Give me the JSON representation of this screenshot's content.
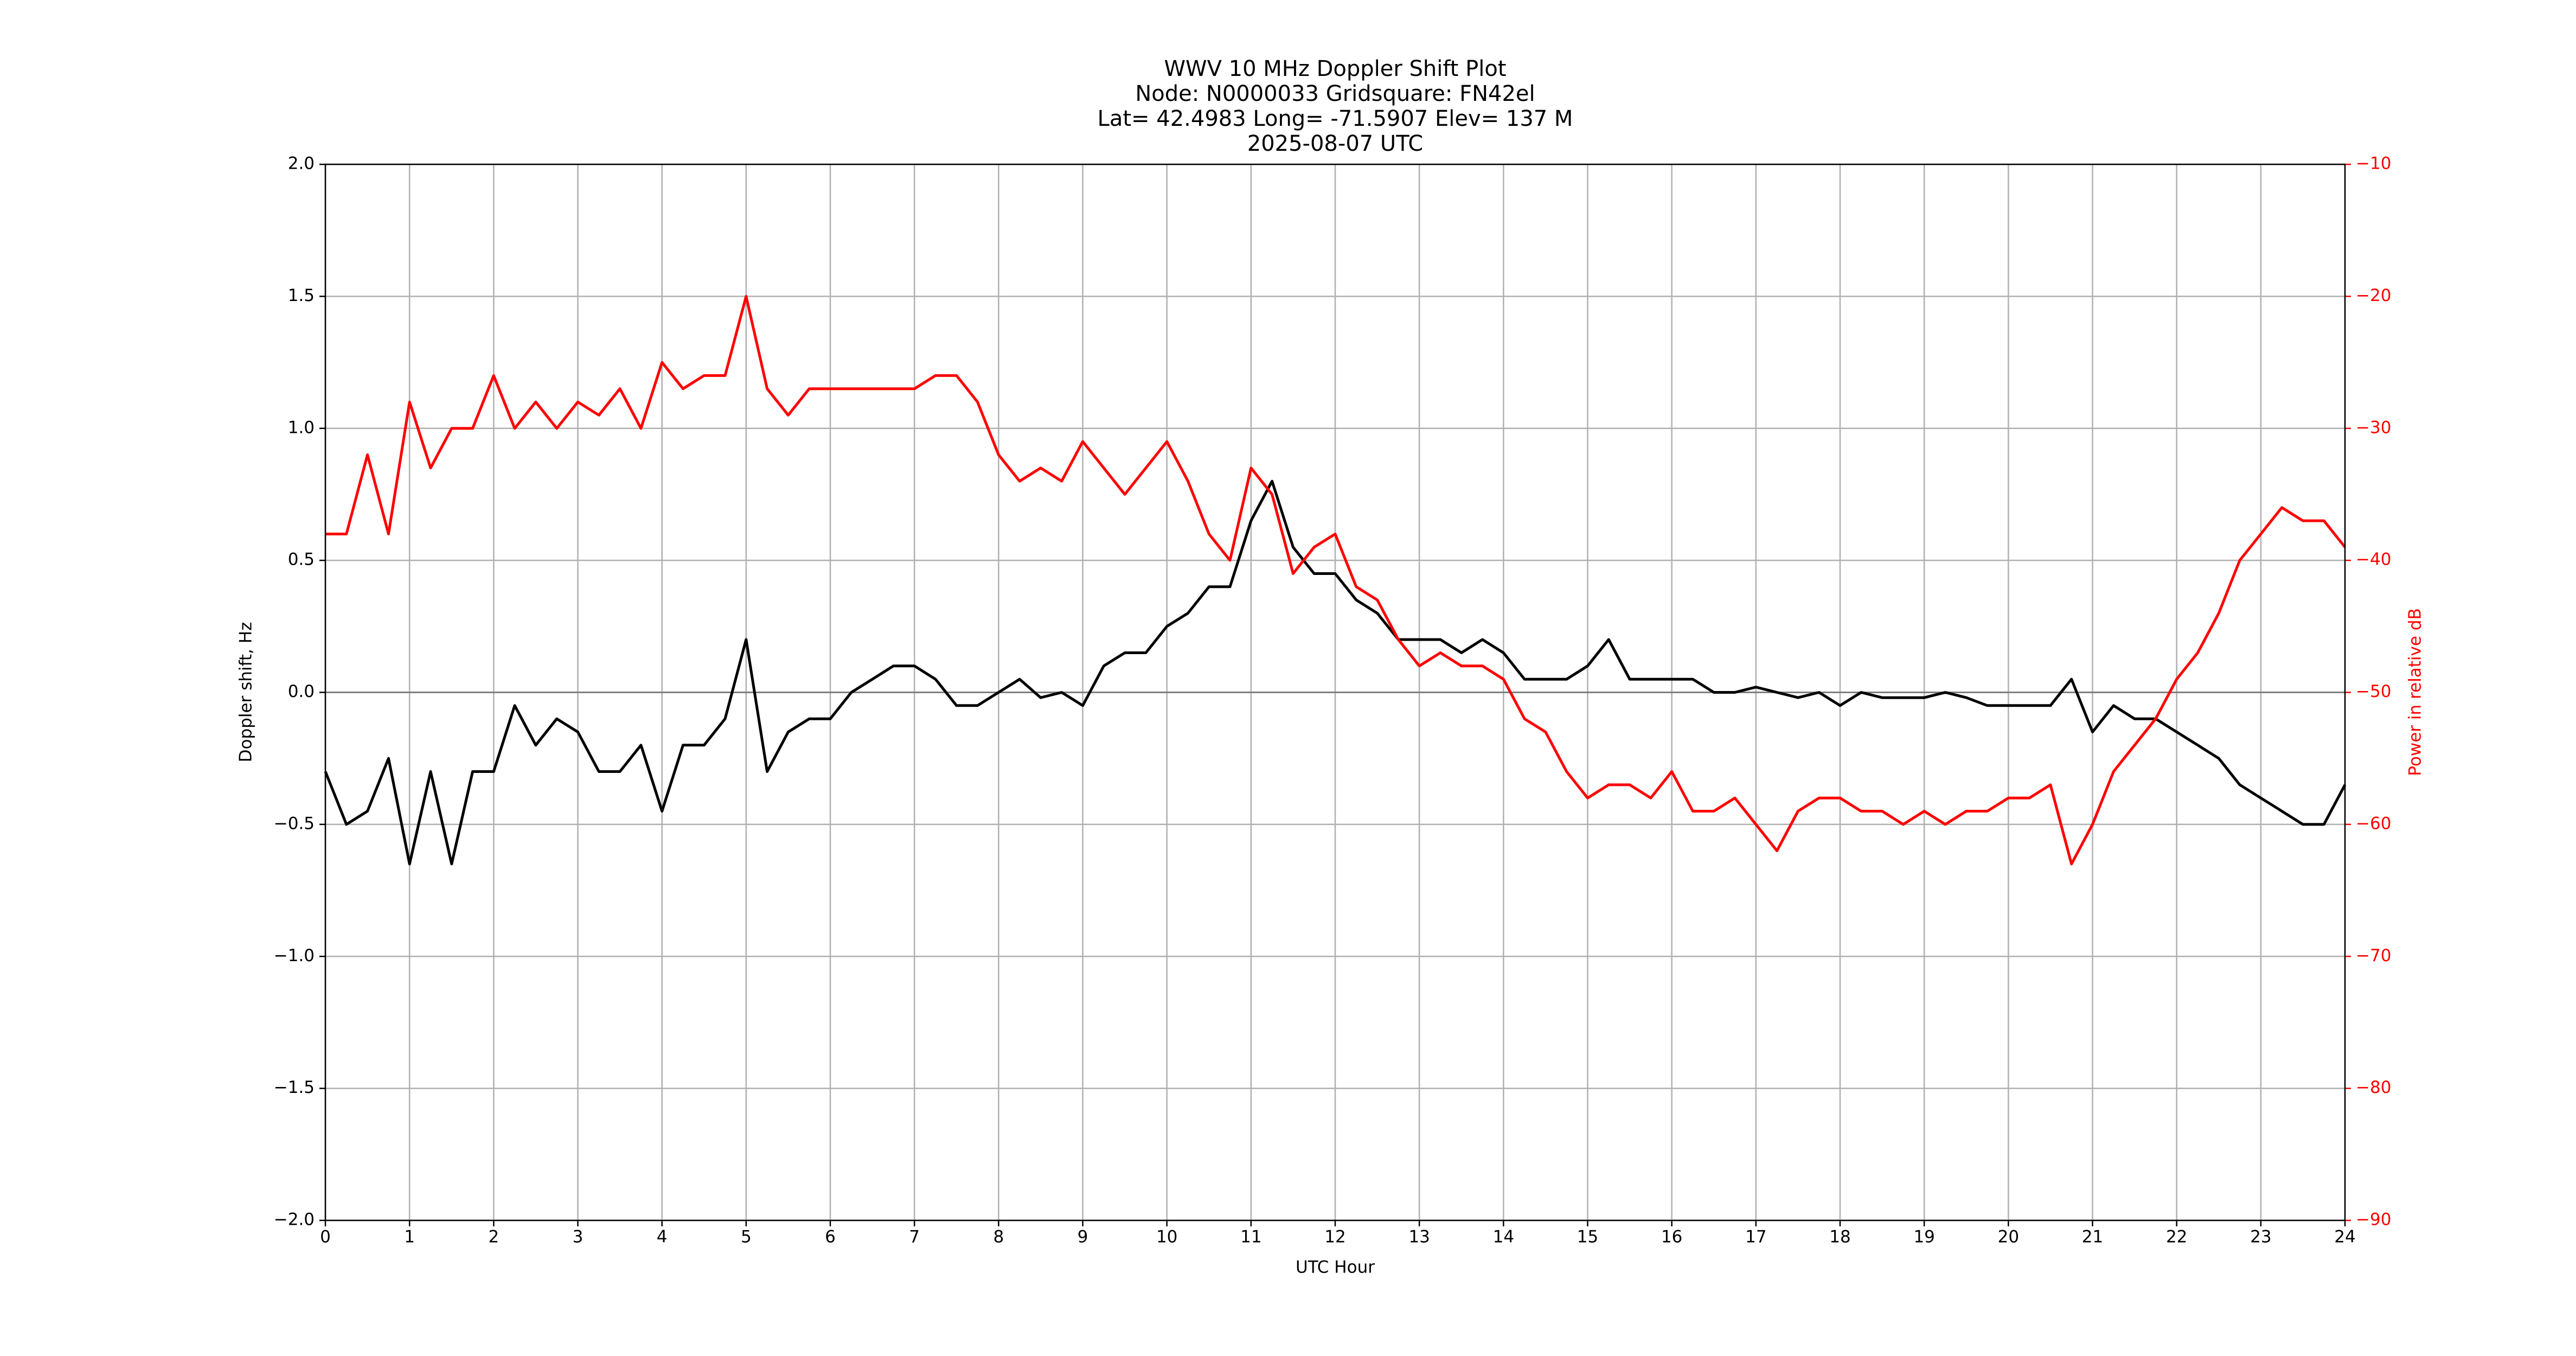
{
  "chart_data": {
    "type": "line",
    "title": [
      "WWV 10 MHz Doppler Shift Plot",
      "Node:  N0000033     Gridsquare:  FN42el",
      "Lat= 42.4983    Long= -71.5907    Elev= 137 M",
      "2025-08-07  UTC"
    ],
    "x_label": "UTC Hour",
    "y_label": "Doppler shift, Hz",
    "y2_label": "Power in relative dB",
    "grid": true,
    "x": [
      0,
      0.25,
      0.5,
      0.75,
      1,
      1.25,
      1.5,
      1.75,
      2,
      2.25,
      2.5,
      2.75,
      3,
      3.25,
      3.5,
      3.75,
      4,
      4.25,
      4.5,
      4.75,
      5,
      5.25,
      5.5,
      5.75,
      6,
      6.25,
      6.5,
      6.75,
      7,
      7.25,
      7.5,
      7.75,
      8,
      8.25,
      8.5,
      8.75,
      9,
      9.25,
      9.5,
      9.75,
      10,
      10.25,
      10.5,
      10.75,
      11,
      11.25,
      11.5,
      11.75,
      12,
      12.25,
      12.5,
      12.75,
      13,
      13.25,
      13.5,
      13.75,
      14,
      14.25,
      14.5,
      14.75,
      15,
      15.25,
      15.5,
      15.75,
      16,
      16.25,
      16.5,
      16.75,
      17,
      17.25,
      17.5,
      17.75,
      18,
      18.25,
      18.5,
      18.75,
      19,
      19.25,
      19.5,
      19.75,
      20,
      20.25,
      20.5,
      20.75,
      21,
      21.25,
      21.5,
      21.75,
      22,
      22.25,
      22.5,
      22.75,
      23,
      23.25,
      23.5,
      23.75,
      24
    ],
    "series": [
      {
        "name": "Doppler shift",
        "color": "#000000",
        "values": [
          -0.3,
          -0.5,
          -0.45,
          -0.25,
          -0.65,
          -0.3,
          -0.65,
          -0.3,
          -0.3,
          -0.05,
          -0.2,
          -0.1,
          -0.15,
          -0.3,
          -0.3,
          -0.2,
          -0.45,
          -0.2,
          -0.2,
          -0.1,
          0.2,
          -0.3,
          -0.15,
          -0.1,
          -0.1,
          0.0,
          0.05,
          0.1,
          0.1,
          0.05,
          -0.05,
          -0.05,
          0.0,
          0.05,
          -0.02,
          0.0,
          -0.05,
          0.1,
          0.15,
          0.15,
          0.25,
          0.3,
          0.4,
          0.4,
          0.65,
          0.8,
          0.55,
          0.45,
          0.45,
          0.35,
          0.3,
          0.2,
          0.2,
          0.2,
          0.15,
          0.2,
          0.15,
          0.05,
          0.05,
          0.05,
          0.1,
          0.2,
          0.05,
          0.05,
          0.05,
          0.05,
          0.0,
          0.0,
          0.02,
          0.0,
          -0.02,
          0.0,
          -0.05,
          0.0,
          -0.02,
          -0.02,
          -0.02,
          0.0,
          -0.02,
          -0.05,
          -0.05,
          -0.05,
          -0.05,
          0.05,
          -0.15,
          -0.05,
          -0.1,
          -0.1,
          -0.15,
          -0.2,
          -0.25,
          -0.35,
          -0.4,
          -0.45,
          -0.5,
          -0.5,
          -0.35
        ]
      },
      {
        "name": "Power",
        "color": "#ff0000",
        "axis": "y2",
        "values": [
          -38,
          -38,
          -32,
          -38,
          -28,
          -33,
          -30,
          -30,
          -26,
          -30,
          -28,
          -30,
          -28,
          -29,
          -27,
          -30,
          -25,
          -27,
          -26,
          -26,
          -20,
          -27,
          -29,
          -27,
          -27,
          -27,
          -27,
          -27,
          -27,
          -26,
          -26,
          -28,
          -32,
          -34,
          -33,
          -34,
          -31,
          -33,
          -35,
          -33,
          -31,
          -34,
          -38,
          -40,
          -33,
          -35,
          -41,
          -39,
          -38,
          -42,
          -43,
          -46,
          -48,
          -47,
          -48,
          -48,
          -49,
          -52,
          -53,
          -56,
          -58,
          -57,
          -57,
          -58,
          -56,
          -59,
          -59,
          -58,
          -60,
          -62,
          -59,
          -58,
          -58,
          -59,
          -59,
          -60,
          -59,
          -60,
          -59,
          -59,
          -58,
          -58,
          -57,
          -63,
          -60,
          -56,
          -54,
          -52,
          -49,
          -47,
          -44,
          -40,
          -38,
          -36,
          -37,
          -37,
          -39
        ]
      }
    ],
    "xlim": [
      0,
      24
    ],
    "xticks": [
      0,
      1,
      2,
      3,
      4,
      5,
      6,
      7,
      8,
      9,
      10,
      11,
      12,
      13,
      14,
      15,
      16,
      17,
      18,
      19,
      20,
      21,
      22,
      23,
      24
    ],
    "ylim": [
      -2.0,
      2.0
    ],
    "yticks": [
      {
        "value": -2.0,
        "label": "−2.0"
      },
      {
        "value": -1.5,
        "label": "−1.5"
      },
      {
        "value": -1.0,
        "label": "−1.0"
      },
      {
        "value": -0.5,
        "label": "−0.5"
      },
      {
        "value": 0.0,
        "label": "0.0"
      },
      {
        "value": 0.5,
        "label": "0.5"
      },
      {
        "value": 1.0,
        "label": "1.0"
      },
      {
        "value": 1.5,
        "label": "1.5"
      },
      {
        "value": 2.0,
        "label": "2.0"
      }
    ],
    "y2lim": [
      -90,
      -10
    ],
    "y2ticks": [
      {
        "value": -90,
        "label": "−90"
      },
      {
        "value": -80,
        "label": "−80"
      },
      {
        "value": -70,
        "label": "−70"
      },
      {
        "value": -60,
        "label": "−60"
      },
      {
        "value": -50,
        "label": "−50"
      },
      {
        "value": -40,
        "label": "−40"
      },
      {
        "value": -30,
        "label": "−30"
      },
      {
        "value": -20,
        "label": "−20"
      },
      {
        "value": -10,
        "label": "−10"
      }
    ],
    "y2_color": "#ff0000"
  }
}
